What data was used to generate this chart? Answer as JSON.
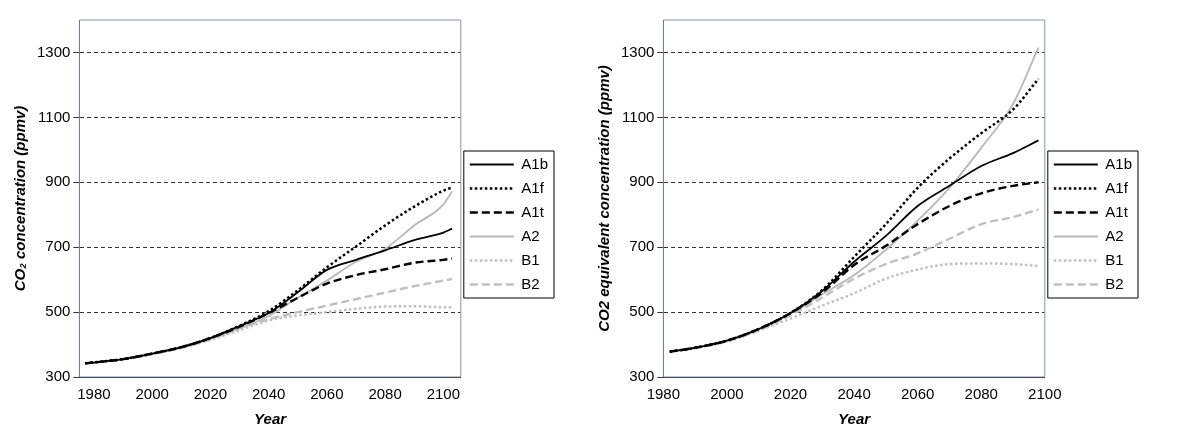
{
  "chart_data": [
    {
      "type": "line",
      "xlabel": "Year",
      "ylabel": "CO₂ concentration (ppmv)",
      "xlim": [
        1975,
        2106
      ],
      "xticks": [
        1980,
        2000,
        2020,
        2040,
        2060,
        2080,
        2100
      ],
      "ylim": [
        300,
        1400
      ],
      "yticks": [
        300,
        500,
        700,
        900,
        1100,
        1300
      ],
      "grid": "y",
      "legend": "right",
      "marker": "none",
      "x": [
        1977,
        1990,
        2000,
        2010,
        2020,
        2030,
        2040,
        2050,
        2060,
        2070,
        2080,
        2090,
        2100,
        2103
      ],
      "series": [
        {
          "name": "A1b",
          "color": "#000000",
          "line_style": "solid",
          "values": [
            342,
            355,
            372,
            392,
            420,
            457,
            497,
            561,
            630,
            661,
            690,
            722,
            745,
            757
          ]
        },
        {
          "name": "A1f",
          "color": "#000000",
          "line_style": "dotted",
          "values": [
            342,
            355,
            372,
            392,
            420,
            458,
            503,
            567,
            638,
            702,
            767,
            825,
            874,
            884
          ]
        },
        {
          "name": "A1t",
          "color": "#000000",
          "line_style": "dashed",
          "values": [
            342,
            355,
            372,
            392,
            420,
            455,
            497,
            544,
            588,
            614,
            632,
            652,
            661,
            665
          ]
        },
        {
          "name": "A2",
          "color": "#b8b8b8",
          "line_style": "solid",
          "values": [
            342,
            355,
            372,
            390,
            418,
            450,
            488,
            544,
            597,
            655,
            695,
            767,
            831,
            872
          ]
        },
        {
          "name": "B1",
          "color": "#c0c0c0",
          "line_style": "dotted",
          "values": [
            342,
            355,
            372,
            390,
            415,
            444,
            474,
            490,
            500,
            510,
            517,
            518,
            515,
            515
          ]
        },
        {
          "name": "B2",
          "color": "#c0c0c0",
          "line_style": "dashed",
          "values": [
            342,
            355,
            372,
            390,
            416,
            450,
            478,
            500,
            520,
            540,
            560,
            580,
            597,
            602
          ]
        }
      ]
    },
    {
      "type": "line",
      "xlabel": "Year",
      "ylabel": "CO2 equivalent concentration (ppmv)",
      "xlim": [
        1980,
        2100
      ],
      "xticks": [
        1980,
        2000,
        2020,
        2040,
        2060,
        2080,
        2100
      ],
      "ylim": [
        300,
        1400
      ],
      "yticks": [
        300,
        500,
        700,
        900,
        1100,
        1300
      ],
      "grid": "y",
      "legend": "right",
      "marker": "none",
      "x": [
        1982,
        1990,
        2000,
        2010,
        2020,
        2030,
        2040,
        2050,
        2060,
        2070,
        2080,
        2090,
        2098
      ],
      "series": [
        {
          "name": "A1b",
          "color": "#000000",
          "line_style": "solid",
          "values": [
            378,
            390,
            412,
            448,
            497,
            565,
            655,
            735,
            827,
            889,
            950,
            990,
            1029
          ]
        },
        {
          "name": "A1f",
          "color": "#000000",
          "line_style": "dotted",
          "values": [
            378,
            390,
            412,
            448,
            497,
            568,
            670,
            771,
            883,
            973,
            1051,
            1124,
            1219
          ]
        },
        {
          "name": "A1t",
          "color": "#000000",
          "line_style": "dashed",
          "values": [
            378,
            390,
            412,
            448,
            497,
            560,
            645,
            704,
            771,
            827,
            866,
            889,
            900
          ]
        },
        {
          "name": "A2",
          "color": "#b8b8b8",
          "line_style": "solid",
          "values": [
            378,
            390,
            412,
            446,
            495,
            555,
            614,
            692,
            782,
            883,
            1006,
            1141,
            1315
          ]
        },
        {
          "name": "B1",
          "color": "#c0c0c0",
          "line_style": "dotted",
          "values": [
            378,
            390,
            410,
            444,
            480,
            520,
            558,
            603,
            631,
            648,
            650,
            648,
            642
          ]
        },
        {
          "name": "B2",
          "color": "#c0c0c0",
          "line_style": "dashed",
          "values": [
            378,
            390,
            410,
            444,
            490,
            545,
            603,
            648,
            681,
            726,
            771,
            793,
            816
          ]
        }
      ]
    }
  ]
}
